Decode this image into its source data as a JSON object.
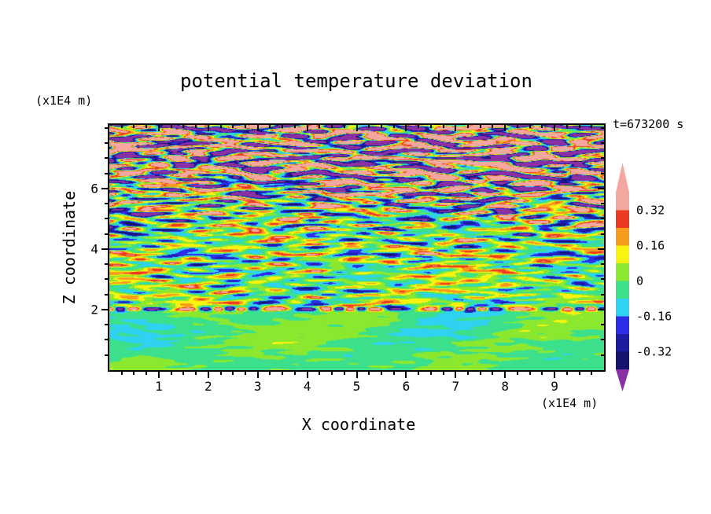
{
  "figure": {
    "title": "potential temperature deviation",
    "time_label": "t=673200 s",
    "x_axis": {
      "label": "X coordinate",
      "units": "(x1E4 m)"
    },
    "z_axis": {
      "label": "Z coordinate",
      "units": "(x1E4 m)"
    }
  },
  "chart_data": {
    "type": "heatmap",
    "title": "potential temperature deviation",
    "time_annotation": "t=673200 s",
    "xlabel": "X coordinate",
    "ylabel": "Z coordinate",
    "axis_units": "(x1E4 m)",
    "x_range": [
      0,
      10
    ],
    "z_range": [
      0,
      8.1
    ],
    "x_major_ticks": [
      1,
      2,
      3,
      4,
      5,
      6,
      7,
      8,
      9
    ],
    "x_minor_step": 0.25,
    "z_major_ticks": [
      2,
      4,
      6
    ],
    "z_minor_step": 0.5,
    "levels": [
      -0.4,
      -0.32,
      -0.24,
      -0.16,
      -0.08,
      0,
      0.08,
      0.16,
      0.24,
      0.32,
      0.4
    ],
    "colors": [
      "#8B2FA5",
      "#14146E",
      "#1C1CA0",
      "#2D2DE8",
      "#2FD2F0",
      "#3CE08C",
      "#8BE82E",
      "#F8F310",
      "#F79B1F",
      "#EE3A21",
      "#F3A79E",
      "#F3A79E"
    ],
    "colorbar_ticks": [
      {
        "value": 0.32,
        "label": "0.32"
      },
      {
        "value": 0.16,
        "label": "0.16"
      },
      {
        "value": 0,
        "label": "0"
      },
      {
        "value": -0.16,
        "label": "-0.16"
      },
      {
        "value": -0.32,
        "label": "-0.32"
      }
    ],
    "field": {
      "description": "Turbulent potential-temperature deviation field: weak smooth deviations (|dev| < 0.08) below z=2x1E4 m, a sharp thin shear line of alternating strong +/- deviation at z~2x1E4 m, horizontally elongated turbulent streaks with amplitude increasing with height, exceeding +/-0.4 (pink/purple saturation) near the domain top",
      "amplitude_profile": [
        [
          0,
          0.02
        ],
        [
          1.9,
          0.02
        ],
        [
          2.15,
          0.11
        ],
        [
          3.5,
          0.12
        ],
        [
          4.5,
          0.16
        ],
        [
          5.3,
          0.24
        ],
        [
          6.0,
          0.34
        ],
        [
          6.8,
          0.46
        ],
        [
          8.1,
          0.5
        ]
      ],
      "shear_line_z": 2.0,
      "seed": 137
    }
  }
}
